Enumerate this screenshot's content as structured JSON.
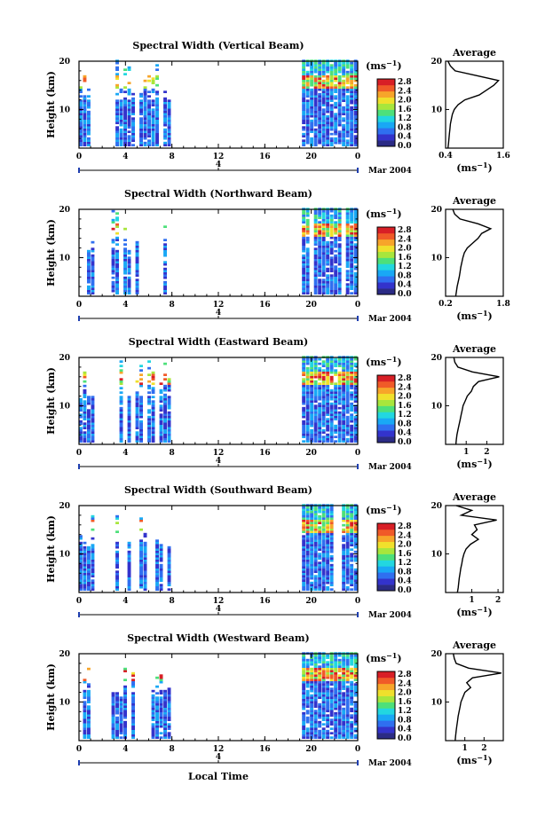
{
  "figure": {
    "xlabel": "Local Time",
    "date_label": "Mar 2004",
    "day_label": "4",
    "colorbar_unit": "(ms",
    "colorbar_unit_sup": "−1",
    "colorbar_unit_close": ")",
    "colorbar_ticks": [
      "2.8",
      "2.4",
      "2.0",
      "1.6",
      "1.2",
      "0.8",
      "0.4",
      "0.0"
    ],
    "colormap": [
      "#2b2b85",
      "#3333cc",
      "#2f6ff0",
      "#19a8f5",
      "#22d7e0",
      "#4de07a",
      "#a8e63c",
      "#f0e02c",
      "#f7a52a",
      "#f05a28",
      "#d81f26"
    ]
  },
  "chart_data": [
    {
      "type": "heatmap",
      "title": "Spectral Width (Vertical Beam)",
      "ylabel": "Height (km)",
      "xlim": [
        0,
        24
      ],
      "ylim": [
        2,
        20
      ],
      "xticks": [
        "0",
        "4",
        "8",
        "12",
        "16",
        "20",
        "0"
      ],
      "yticks": [
        "20",
        "10"
      ],
      "data_blocks_hours": [
        [
          0.0,
          1.4
        ],
        [
          2.8,
          8.0
        ],
        [
          19.2,
          24.0
        ]
      ],
      "profile": {
        "title": "Average",
        "xlabel": "(ms",
        "xlabel_sup": "−1",
        "xlabel_close": ")",
        "xlim": [
          0.4,
          1.6
        ],
        "xticks": [
          "0.4",
          "1.6"
        ],
        "yticks": [
          "20",
          "10"
        ],
        "height_km": [
          2,
          3,
          4,
          5,
          6,
          7,
          8,
          9,
          10,
          11,
          12,
          13,
          14,
          15,
          16,
          17,
          18,
          19,
          20
        ],
        "width_ms": [
          0.45,
          0.46,
          0.47,
          0.48,
          0.49,
          0.5,
          0.52,
          0.54,
          0.58,
          0.66,
          0.8,
          1.1,
          1.25,
          1.4,
          1.5,
          1.05,
          0.6,
          0.5,
          0.45
        ]
      }
    },
    {
      "type": "heatmap",
      "title": "Spectral Width (Northward Beam)",
      "ylabel": "Height (km)",
      "xlim": [
        0,
        24
      ],
      "ylim": [
        2,
        20
      ],
      "xticks": [
        "0",
        "4",
        "8",
        "12",
        "16",
        "20",
        "0"
      ],
      "yticks": [
        "20",
        "10"
      ],
      "data_blocks_hours": [
        [
          0.0,
          1.4
        ],
        [
          2.8,
          8.0
        ],
        [
          19.2,
          24.0
        ]
      ],
      "profile": {
        "title": "Average",
        "xlabel": "(ms",
        "xlabel_sup": "−1",
        "xlabel_close": ")",
        "xlim": [
          0.2,
          1.8
        ],
        "xticks": [
          "0.2",
          "1.8"
        ],
        "yticks": [
          "20",
          "10"
        ],
        "height_km": [
          2,
          3,
          4,
          5,
          6,
          7,
          8,
          9,
          10,
          11,
          12,
          13,
          14,
          15,
          16,
          17,
          18,
          19,
          20
        ],
        "width_ms": [
          0.48,
          0.5,
          0.52,
          0.55,
          0.58,
          0.6,
          0.62,
          0.65,
          0.68,
          0.72,
          0.8,
          0.95,
          1.1,
          1.2,
          1.45,
          1.1,
          0.6,
          0.45,
          0.4
        ]
      }
    },
    {
      "type": "heatmap",
      "title": "Spectral Width (Eastward Beam)",
      "ylabel": "Height (km)",
      "xlim": [
        0,
        24
      ],
      "ylim": [
        2,
        20
      ],
      "xticks": [
        "0",
        "4",
        "8",
        "12",
        "16",
        "20",
        "0"
      ],
      "yticks": [
        "20",
        "10"
      ],
      "data_blocks_hours": [
        [
          0.0,
          1.4
        ],
        [
          2.8,
          8.0
        ],
        [
          19.2,
          24.0
        ]
      ],
      "profile": {
        "title": "Average",
        "xlabel": "(ms",
        "xlabel_sup": "−1",
        "xlabel_close": ")",
        "xlim": [
          0,
          2.8
        ],
        "xticks": [
          "1",
          "2"
        ],
        "yticks": [
          "20",
          "10"
        ],
        "height_km": [
          2,
          3,
          4,
          5,
          6,
          7,
          8,
          9,
          10,
          11,
          12,
          13,
          14,
          15,
          16,
          17,
          18,
          19,
          20
        ],
        "width_ms": [
          0.5,
          0.52,
          0.55,
          0.6,
          0.65,
          0.7,
          0.75,
          0.8,
          0.85,
          0.95,
          1.05,
          1.25,
          1.35,
          1.6,
          2.6,
          1.3,
          0.6,
          0.45,
          0.4
        ]
      }
    },
    {
      "type": "heatmap",
      "title": "Spectral Width (Southward Beam)",
      "ylabel": "Height (km)",
      "xlim": [
        0,
        24
      ],
      "ylim": [
        2,
        20
      ],
      "xticks": [
        "0",
        "4",
        "8",
        "12",
        "16",
        "20",
        "0"
      ],
      "yticks": [
        "20",
        "10"
      ],
      "data_blocks_hours": [
        [
          0.0,
          1.4
        ],
        [
          2.8,
          8.0
        ],
        [
          19.2,
          24.0
        ]
      ],
      "profile": {
        "title": "Average",
        "xlabel": "(ms",
        "xlabel_sup": "−1",
        "xlabel_close": ")",
        "xlim": [
          0,
          2.2
        ],
        "xticks": [
          "1",
          "2"
        ],
        "yticks": [
          "20",
          "10"
        ],
        "height_km": [
          2,
          3,
          4,
          5,
          6,
          7,
          8,
          9,
          10,
          11,
          12,
          13,
          14,
          15,
          16,
          17,
          18,
          19,
          20
        ],
        "width_ms": [
          0.45,
          0.48,
          0.5,
          0.52,
          0.55,
          0.58,
          0.62,
          0.65,
          0.7,
          0.78,
          0.95,
          1.25,
          1.0,
          1.2,
          1.1,
          1.95,
          0.6,
          1.0,
          0.4
        ]
      }
    },
    {
      "type": "heatmap",
      "title": "Spectral Width (Westward Beam)",
      "ylabel": "Height (km)",
      "xlim": [
        0,
        24
      ],
      "ylim": [
        2,
        20
      ],
      "xticks": [
        "0",
        "4",
        "8",
        "12",
        "16",
        "20",
        "0"
      ],
      "yticks": [
        "20",
        "10"
      ],
      "data_blocks_hours": [
        [
          0.0,
          1.4
        ],
        [
          2.8,
          8.0
        ],
        [
          19.2,
          24.0
        ]
      ],
      "profile": {
        "title": "Average",
        "xlabel": "(ms",
        "xlabel_sup": "−1",
        "xlabel_close": ")",
        "xlim": [
          0,
          3.0
        ],
        "xticks": [
          "1",
          "2"
        ],
        "yticks": [
          "20",
          "10"
        ],
        "height_km": [
          2,
          3,
          4,
          5,
          6,
          7,
          8,
          9,
          10,
          11,
          12,
          13,
          14,
          15,
          16,
          17,
          18,
          19,
          20
        ],
        "width_ms": [
          0.5,
          0.52,
          0.55,
          0.58,
          0.62,
          0.65,
          0.7,
          0.75,
          0.8,
          0.9,
          1.0,
          1.3,
          1.1,
          1.4,
          2.9,
          1.2,
          0.55,
          0.45,
          0.4
        ]
      }
    }
  ]
}
